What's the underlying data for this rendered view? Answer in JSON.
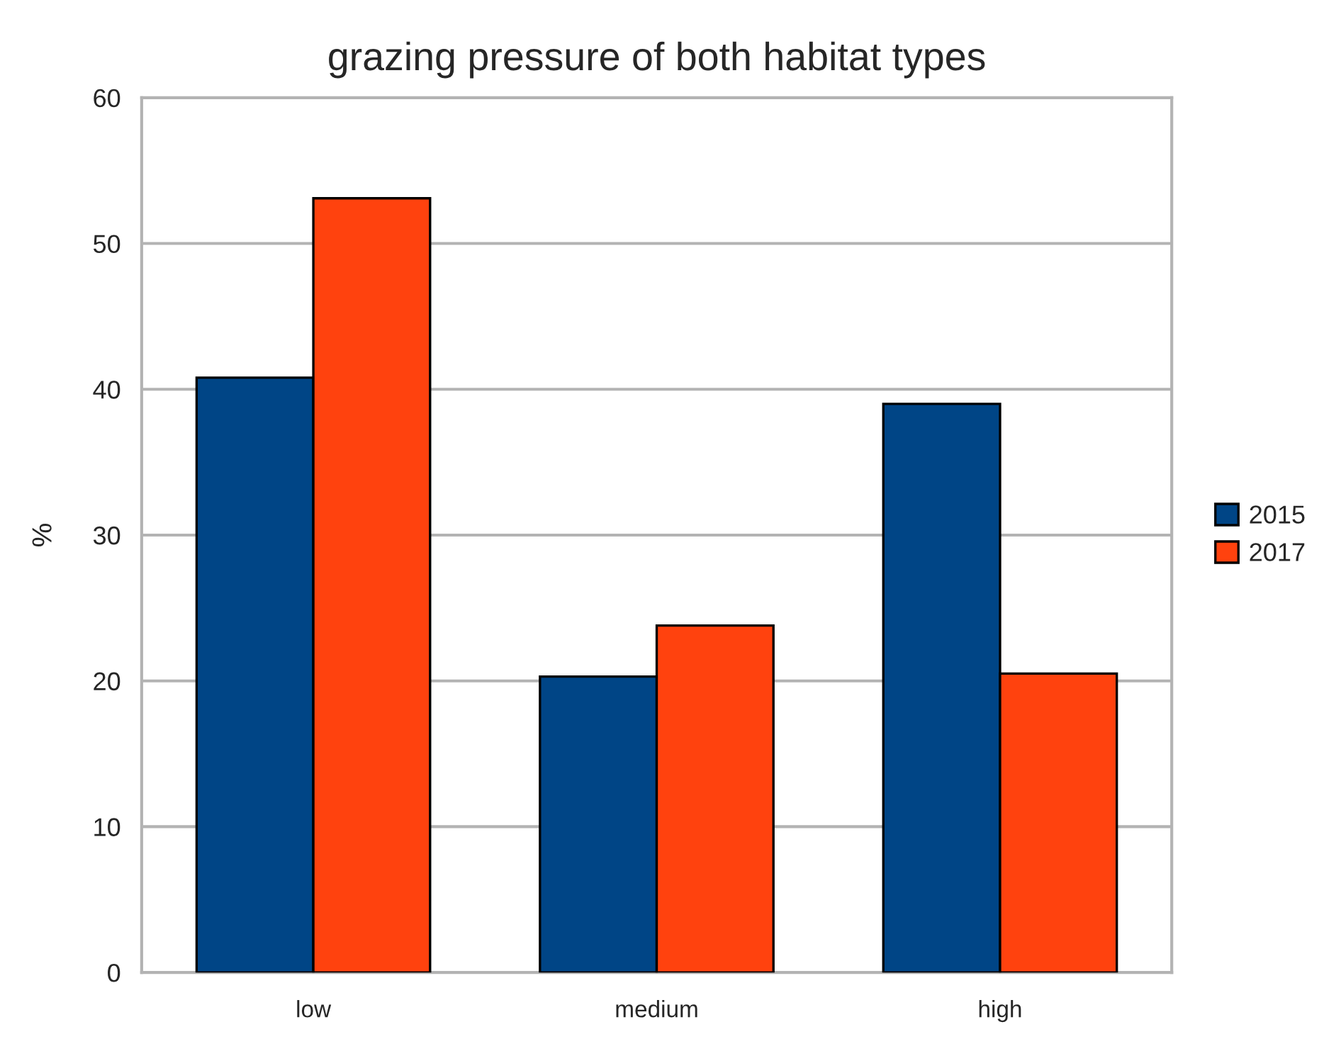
{
  "chart_data": {
    "type": "bar",
    "title": "grazing pressure of both habitat types",
    "ylabel": "%",
    "categories": [
      "low",
      "medium",
      "high"
    ],
    "series": [
      {
        "name": "2015",
        "color": "#004586",
        "values": [
          40.8,
          20.3,
          39.0
        ]
      },
      {
        "name": "2017",
        "color": "#ff420e",
        "values": [
          53.1,
          23.8,
          20.5
        ]
      }
    ],
    "ylim": [
      0,
      60
    ],
    "yticks": [
      0,
      10,
      20,
      30,
      40,
      50,
      60
    ],
    "grid": "y",
    "legend": "right"
  }
}
